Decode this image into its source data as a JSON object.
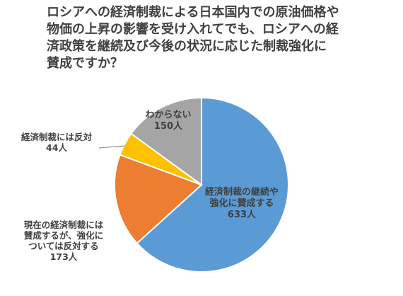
{
  "chart_data": {
    "type": "pie",
    "title_lines": [
      "ロシアへの経済制裁による日本国内での原油価格や",
      "物価の上昇の影響を受け入れてでも、ロシアへの経",
      "済政策を継続及び今後の状況に応じた制裁強化に",
      "賛成ですか？"
    ],
    "slices": [
      {
        "label_lines": [
          "経済制裁の継続や",
          "強化に賛成する"
        ],
        "value": 633,
        "value_label": "633人",
        "color": "#5B9BD5"
      },
      {
        "label_lines": [
          "現在の経済制裁には",
          "賛成するが、強化に",
          "ついては反対する"
        ],
        "value": 173,
        "value_label": "173人",
        "color": "#ED7D31"
      },
      {
        "label_lines": [
          "経済制裁には反対"
        ],
        "value": 44,
        "value_label": "44人",
        "color": "#FFC000"
      },
      {
        "label_lines": [
          "わからない"
        ],
        "value": 150,
        "value_label": "150人",
        "color": "#A5A5A5"
      }
    ],
    "start_angle_deg": 0,
    "direction": "clockwise"
  }
}
